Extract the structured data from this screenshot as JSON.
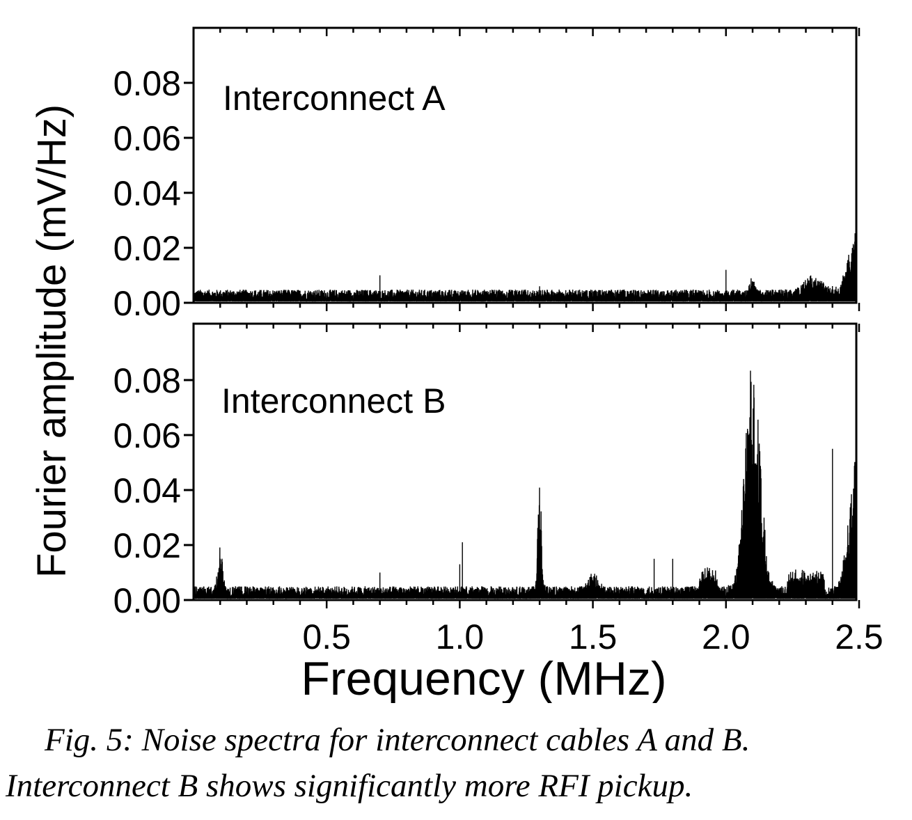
{
  "chart_data": [
    {
      "type": "line",
      "panel_label": "Interconnect A",
      "xlim": [
        0,
        2.5
      ],
      "ylim": [
        0,
        0.1
      ],
      "yticks": [
        "0.00",
        "0.02",
        "0.04",
        "0.06",
        "0.08"
      ],
      "series": [
        {
          "baseline": 0.003,
          "noise": 0.0018,
          "features": [
            {
              "type": "spike",
              "x": 0.7,
              "y": 0.01
            },
            {
              "type": "spike",
              "x": 1.3,
              "y": 0.006
            },
            {
              "type": "spike",
              "x": 2.0,
              "y": 0.012
            },
            {
              "type": "bump",
              "x": 2.1,
              "width": 0.012,
              "y": 0.006
            },
            {
              "type": "bump",
              "x": 2.33,
              "width": 0.05,
              "y": 0.006
            },
            {
              "type": "bump",
              "x": 2.5,
              "width": 0.05,
              "y": 0.025
            }
          ]
        }
      ]
    },
    {
      "type": "line",
      "panel_label": "Interconnect B",
      "xlabel": "Frequency (MHz)",
      "xlim": [
        0,
        2.5
      ],
      "ylim": [
        0,
        0.1
      ],
      "xticks": [
        "0.5",
        "1.0",
        "1.5",
        "2.0",
        "2.5"
      ],
      "yticks": [
        "0.00",
        "0.02",
        "0.04",
        "0.06",
        "0.08"
      ],
      "series": [
        {
          "baseline": 0.003,
          "noise": 0.002,
          "features": [
            {
              "type": "bump",
              "x": 0.1,
              "width": 0.012,
              "y": 0.016
            },
            {
              "type": "spike",
              "x": 0.7,
              "y": 0.01
            },
            {
              "type": "spike",
              "x": 1.0,
              "y": 0.013
            },
            {
              "type": "spike",
              "x": 1.01,
              "y": 0.021
            },
            {
              "type": "bump",
              "x": 1.3,
              "width": 0.01,
              "y": 0.038
            },
            {
              "type": "bump",
              "x": 1.5,
              "width": 0.025,
              "y": 0.006
            },
            {
              "type": "spike",
              "x": 1.73,
              "y": 0.015
            },
            {
              "type": "spike",
              "x": 1.8,
              "y": 0.015
            },
            {
              "type": "plateau",
              "x0": 1.9,
              "x1": 1.97,
              "y": 0.011
            },
            {
              "type": "bump",
              "x": 2.1,
              "width": 0.04,
              "y": 0.085
            },
            {
              "type": "plateau",
              "x0": 2.23,
              "x1": 2.37,
              "y": 0.011
            },
            {
              "type": "spike",
              "x": 2.4,
              "y": 0.055
            },
            {
              "type": "bump",
              "x": 2.49,
              "width": 0.04,
              "y": 0.048
            }
          ]
        }
      ]
    }
  ],
  "ylabel": "Fourier amplitude (mV/Hz)",
  "caption": {
    "line1": "Fig. 5: Noise spectra for interconnect cables A and B.",
    "line2": "Interconnect B shows significantly more RFI pickup."
  }
}
